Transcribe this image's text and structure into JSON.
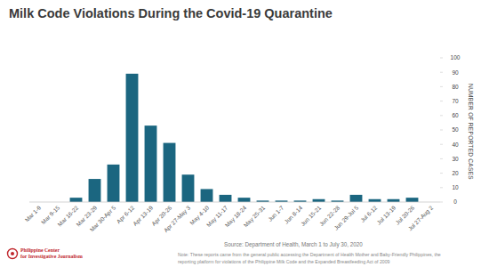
{
  "chart_data": {
    "type": "bar",
    "title": "Milk Code Violations During the Covid-19 Quarantine",
    "y_label": "NUMBER OF REPORTED CASES",
    "categories": [
      "Mar 1-9",
      "Mar 9-15",
      "Mar 16-22",
      "Mar 23-29",
      "Mar 30-Apr 5",
      "Apr 6-12",
      "Apr 13-19",
      "Apr 20-26",
      "Apr 27-May 3",
      "May 4-10",
      "May 11-17",
      "May 18-24",
      "May 25-31",
      "Jun 1-7",
      "Jun 8-14",
      "Jun 15-21",
      "Jun 22-28",
      "Jun 29-Jul 5",
      "Jul 6-12",
      "Jul 13-19",
      "Jul 20-26",
      "Jul 27-Aug 2"
    ],
    "values": [
      0,
      0,
      3,
      16,
      26,
      89,
      53,
      41,
      19,
      9,
      5,
      3,
      1,
      1,
      1,
      2,
      1,
      5,
      2,
      2,
      3,
      0
    ],
    "color": "#1b6680",
    "ylim": [
      0,
      100
    ],
    "yticks": [
      0,
      10,
      20,
      30,
      40,
      50,
      60,
      70,
      80,
      90,
      100
    ],
    "grid": false,
    "source": "Source: Department of Health, March 1 to July 30, 2020",
    "note": [
      "Note: These reports came from the general public accessing the Department of Health Mother and Baby-Friendly Philippines, the",
      "reporting platform for violations of the Philippine Milk Code and the Expanded Breastfeeding Act of 2009"
    ],
    "credit": [
      "Philippine Center",
      "for Investigative Journalism"
    ]
  }
}
